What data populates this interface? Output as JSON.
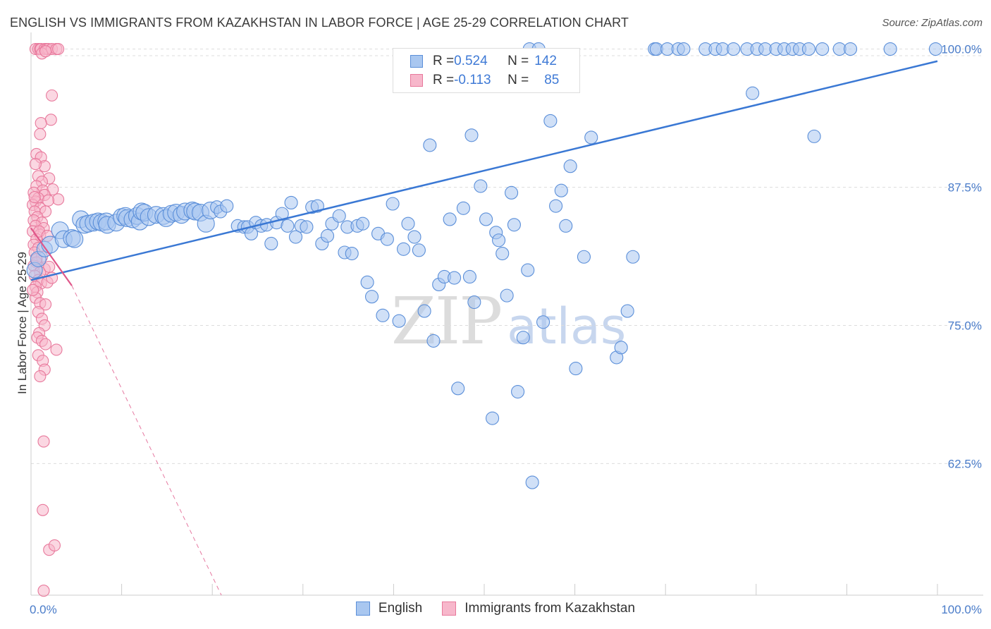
{
  "header": {
    "title": "ENGLISH VS IMMIGRANTS FROM KAZAKHSTAN IN LABOR FORCE | AGE 25-29 CORRELATION CHART",
    "source": "Source: ZipAtlas.com"
  },
  "watermark": {
    "zip": "ZIP",
    "atlas": "atlas"
  },
  "legend": {
    "english": {
      "r_label": "R = ",
      "r_value": "0.524",
      "n_label": "N = ",
      "n_value": "142"
    },
    "kazakhstan": {
      "r_label": "R = ",
      "r_value": "-0.113",
      "n_label": "N = ",
      "n_value": "85"
    }
  },
  "colors": {
    "english_fill": "#a9c7f0",
    "english_stroke": "#5b8fd9",
    "english_line": "#3a78d4",
    "kaz_fill": "#f7b7cb",
    "kaz_stroke": "#e8799c",
    "kaz_line": "#e0578a",
    "grid": "#dddddd",
    "tick_text": "#4a7cc9"
  },
  "chart_data": {
    "type": "scatter",
    "title": "ENGLISH VS IMMIGRANTS FROM KAZAKHSTAN IN LABOR FORCE | AGE 25-29 CORRELATION CHART",
    "xlabel": "",
    "ylabel": "In Labor Force | Age 25-29",
    "xlim": [
      0,
      100
    ],
    "ylim": [
      50.6,
      101.5
    ],
    "x_tick_labels": [
      "0.0%",
      "100.0%"
    ],
    "y_ticks": [
      62.5,
      75.0,
      87.5,
      100.0
    ],
    "y_tick_labels": [
      "62.5%",
      "75.0%",
      "87.5%",
      "100.0%"
    ],
    "grid": true,
    "legend_position": "bottom-center",
    "series": [
      {
        "name": "English",
        "trendline": {
          "x": [
            0,
            100
          ],
          "y": [
            79.1,
            98.9
          ]
        },
        "points": [
          [
            0.4,
            80.0
          ],
          [
            0.8,
            81.0
          ],
          [
            1.5,
            81.9
          ],
          [
            2.1,
            82.3
          ],
          [
            3.2,
            83.6
          ],
          [
            3.6,
            82.8
          ],
          [
            4.5,
            82.9
          ],
          [
            4.8,
            82.8
          ],
          [
            5.5,
            84.6
          ],
          [
            5.9,
            84.1
          ],
          [
            6.3,
            84.2
          ],
          [
            6.9,
            84.3
          ],
          [
            7.4,
            84.4
          ],
          [
            7.8,
            84.3
          ],
          [
            8.3,
            84.4
          ],
          [
            8.4,
            84.1
          ],
          [
            9.4,
            84.3
          ],
          [
            10.0,
            84.8
          ],
          [
            10.4,
            84.9
          ],
          [
            10.6,
            84.7
          ],
          [
            11.2,
            84.6
          ],
          [
            11.7,
            84.9
          ],
          [
            12.0,
            84.4
          ],
          [
            12.2,
            85.3
          ],
          [
            12.5,
            85.2
          ],
          [
            13.0,
            84.8
          ],
          [
            13.8,
            85.0
          ],
          [
            14.6,
            84.9
          ],
          [
            14.9,
            84.7
          ],
          [
            15.5,
            85.1
          ],
          [
            16.0,
            85.2
          ],
          [
            16.6,
            85.0
          ],
          [
            17.0,
            85.3
          ],
          [
            17.8,
            85.4
          ],
          [
            18.1,
            85.3
          ],
          [
            18.7,
            85.2
          ],
          [
            19.3,
            84.2
          ],
          [
            19.8,
            85.4
          ],
          [
            20.5,
            85.7
          ],
          [
            20.9,
            85.3
          ],
          [
            21.6,
            85.8
          ],
          [
            22.8,
            84.0
          ],
          [
            23.5,
            83.9
          ],
          [
            23.9,
            83.9
          ],
          [
            24.3,
            83.3
          ],
          [
            24.8,
            84.3
          ],
          [
            25.4,
            84.0
          ],
          [
            26.0,
            84.1
          ],
          [
            26.5,
            82.4
          ],
          [
            27.1,
            84.3
          ],
          [
            27.7,
            85.1
          ],
          [
            28.3,
            84.0
          ],
          [
            28.7,
            86.1
          ],
          [
            29.2,
            83.0
          ],
          [
            29.8,
            84.0
          ],
          [
            30.4,
            83.9
          ],
          [
            31.0,
            85.7
          ],
          [
            31.6,
            85.8
          ],
          [
            32.1,
            82.4
          ],
          [
            32.7,
            83.1
          ],
          [
            33.2,
            84.2
          ],
          [
            34.0,
            84.9
          ],
          [
            34.6,
            81.6
          ],
          [
            34.9,
            83.9
          ],
          [
            35.4,
            81.5
          ],
          [
            36.0,
            84.0
          ],
          [
            36.6,
            84.2
          ],
          [
            37.1,
            78.9
          ],
          [
            37.6,
            77.6
          ],
          [
            38.3,
            83.3
          ],
          [
            38.8,
            75.9
          ],
          [
            39.3,
            82.8
          ],
          [
            39.9,
            86.0
          ],
          [
            40.6,
            75.4
          ],
          [
            41.1,
            81.9
          ],
          [
            41.6,
            84.2
          ],
          [
            42.3,
            83.0
          ],
          [
            42.8,
            81.8
          ],
          [
            43.4,
            76.3
          ],
          [
            44.0,
            91.3
          ],
          [
            44.4,
            73.6
          ],
          [
            45.0,
            78.7
          ],
          [
            45.6,
            79.4
          ],
          [
            46.2,
            84.6
          ],
          [
            46.7,
            79.3
          ],
          [
            47.1,
            69.3
          ],
          [
            47.7,
            85.6
          ],
          [
            48.4,
            79.4
          ],
          [
            48.6,
            92.2
          ],
          [
            48.9,
            77.1
          ],
          [
            49.6,
            87.6
          ],
          [
            50.2,
            84.6
          ],
          [
            50.9,
            66.6
          ],
          [
            51.3,
            83.4
          ],
          [
            51.6,
            82.7
          ],
          [
            52.0,
            81.5
          ],
          [
            52.5,
            77.7
          ],
          [
            53.0,
            87.0
          ],
          [
            53.3,
            84.1
          ],
          [
            53.7,
            69.0
          ],
          [
            54.3,
            73.9
          ],
          [
            54.8,
            80.0
          ],
          [
            55.3,
            60.8
          ],
          [
            56.5,
            75.3
          ],
          [
            57.3,
            93.5
          ],
          [
            57.9,
            85.8
          ],
          [
            58.5,
            87.2
          ],
          [
            59.0,
            84.0
          ],
          [
            59.5,
            89.4
          ],
          [
            60.1,
            71.1
          ],
          [
            61.0,
            81.2
          ],
          [
            61.8,
            92.0
          ],
          [
            64.6,
            72.1
          ],
          [
            65.1,
            73.0
          ],
          [
            65.8,
            76.3
          ],
          [
            66.4,
            81.2
          ],
          [
            68.8,
            100.0
          ],
          [
            69.0,
            100.0
          ],
          [
            70.2,
            100.0
          ],
          [
            71.4,
            100.0
          ],
          [
            72.0,
            100.0
          ],
          [
            74.4,
            100.0
          ],
          [
            75.5,
            100.0
          ],
          [
            76.3,
            100.0
          ],
          [
            77.5,
            100.0
          ],
          [
            79.0,
            100.0
          ],
          [
            79.6,
            96.0
          ],
          [
            80.1,
            100.0
          ],
          [
            81.0,
            100.0
          ],
          [
            82.2,
            100.0
          ],
          [
            83.1,
            100.0
          ],
          [
            84.0,
            100.0
          ],
          [
            84.8,
            100.0
          ],
          [
            85.8,
            100.0
          ],
          [
            86.4,
            92.1
          ],
          [
            87.3,
            100.0
          ],
          [
            89.2,
            100.0
          ],
          [
            90.4,
            100.0
          ],
          [
            94.8,
            100.0
          ],
          [
            99.8,
            100.0
          ],
          [
            55.0,
            100.0
          ],
          [
            56.0,
            100.0
          ]
        ]
      },
      {
        "name": "Immigrants from Kazakhstan",
        "trendline": {
          "x": [
            0,
            4.5
          ],
          "y": [
            83.8,
            78.6
          ]
        },
        "trendline_dashed": {
          "x": [
            4.5,
            21.0
          ],
          "y": [
            78.6,
            50.6
          ]
        },
        "points": [
          [
            0.5,
            100.0
          ],
          [
            0.8,
            100.0
          ],
          [
            1.0,
            100.0
          ],
          [
            1.1,
            100.0
          ],
          [
            1.5,
            100.0
          ],
          [
            1.7,
            100.0
          ],
          [
            1.9,
            100.0
          ],
          [
            2.3,
            100.0
          ],
          [
            2.8,
            100.0
          ],
          [
            3.0,
            100.0
          ],
          [
            1.2,
            99.6
          ],
          [
            1.6,
            99.8
          ],
          [
            2.3,
            95.8
          ],
          [
            2.2,
            93.6
          ],
          [
            1.1,
            93.3
          ],
          [
            1.0,
            92.3
          ],
          [
            0.6,
            90.5
          ],
          [
            1.1,
            90.2
          ],
          [
            1.5,
            89.4
          ],
          [
            0.5,
            89.6
          ],
          [
            2.0,
            88.3
          ],
          [
            0.8,
            88.5
          ],
          [
            1.2,
            88.0
          ],
          [
            0.6,
            87.6
          ],
          [
            1.3,
            87.2
          ],
          [
            0.3,
            87.0
          ],
          [
            2.4,
            87.3
          ],
          [
            3.0,
            86.4
          ],
          [
            1.5,
            86.8
          ],
          [
            0.8,
            86.5
          ],
          [
            0.5,
            86.2
          ],
          [
            1.9,
            86.3
          ],
          [
            0.2,
            85.9
          ],
          [
            1.0,
            85.6
          ],
          [
            0.4,
            85.3
          ],
          [
            1.6,
            85.3
          ],
          [
            0.7,
            84.8
          ],
          [
            0.3,
            84.5
          ],
          [
            1.2,
            84.3
          ],
          [
            0.5,
            84.0
          ],
          [
            1.4,
            83.8
          ],
          [
            0.2,
            83.5
          ],
          [
            1.0,
            83.2
          ],
          [
            0.6,
            82.8
          ],
          [
            0.3,
            82.3
          ],
          [
            0.8,
            82.0
          ],
          [
            0.4,
            81.6
          ],
          [
            1.2,
            81.2
          ],
          [
            0.6,
            80.7
          ],
          [
            0.3,
            80.4
          ],
          [
            1.5,
            80.1
          ],
          [
            1.0,
            79.8
          ],
          [
            0.4,
            79.5
          ],
          [
            0.8,
            79.1
          ],
          [
            1.1,
            78.8
          ],
          [
            1.8,
            78.9
          ],
          [
            2.3,
            79.3
          ],
          [
            0.5,
            78.5
          ],
          [
            0.7,
            78.0
          ],
          [
            0.5,
            77.5
          ],
          [
            1.0,
            77.0
          ],
          [
            1.6,
            76.9
          ],
          [
            0.8,
            76.2
          ],
          [
            1.2,
            75.6
          ],
          [
            1.5,
            75.0
          ],
          [
            0.9,
            74.3
          ],
          [
            0.7,
            73.9
          ],
          [
            1.2,
            73.6
          ],
          [
            1.6,
            73.3
          ],
          [
            2.8,
            72.8
          ],
          [
            0.8,
            72.3
          ],
          [
            1.3,
            71.8
          ],
          [
            1.5,
            71.0
          ],
          [
            1.0,
            70.4
          ],
          [
            1.4,
            64.5
          ],
          [
            1.3,
            58.3
          ],
          [
            2.0,
            54.7
          ],
          [
            2.6,
            55.1
          ],
          [
            1.4,
            51.0
          ],
          [
            0.4,
            86.6
          ],
          [
            0.9,
            83.5
          ],
          [
            1.8,
            83.1
          ],
          [
            0.6,
            81.0
          ],
          [
            2.0,
            80.3
          ],
          [
            0.2,
            78.2
          ]
        ]
      }
    ]
  }
}
